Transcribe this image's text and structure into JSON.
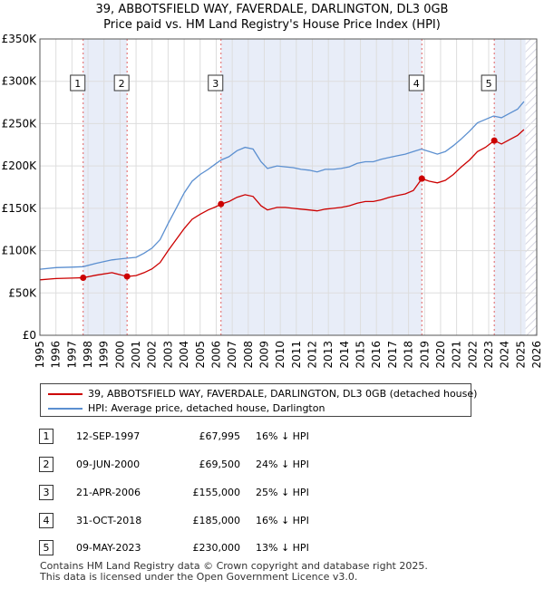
{
  "title_line1": "39, ABBOTSFIELD WAY, FAVERDALE, DARLINGTON, DL3 0GB",
  "title_line2": "Price paid vs. HM Land Registry's House Price Index (HPI)",
  "legend": {
    "property_label": "39, ABBOTSFIELD WAY, FAVERDALE, DARLINGTON, DL3 0GB (detached house)",
    "hpi_label": "HPI: Average price, detached house, Darlington"
  },
  "colors": {
    "property": "#cc0000",
    "hpi": "#5b8fd0",
    "shade": "#e8edf8",
    "grid": "#dddddd"
  },
  "transactions": [
    {
      "num": "1",
      "date": "12-SEP-1997",
      "price": "£67,995",
      "hpi": "16% ↓ HPI"
    },
    {
      "num": "2",
      "date": "09-JUN-2000",
      "price": "£69,500",
      "hpi": "24% ↓ HPI"
    },
    {
      "num": "3",
      "date": "21-APR-2006",
      "price": "£155,000",
      "hpi": "25% ↓ HPI"
    },
    {
      "num": "4",
      "date": "31-OCT-2018",
      "price": "£185,000",
      "hpi": "16% ↓ HPI"
    },
    {
      "num": "5",
      "date": "09-MAY-2023",
      "price": "£230,000",
      "hpi": "13% ↓ HPI"
    }
  ],
  "footer_line1": "Contains HM Land Registry data © Crown copyright and database right 2025.",
  "footer_line2": "This data is licensed under the Open Government Licence v3.0.",
  "chart_data": {
    "type": "line",
    "title": "39, ABBOTSFIELD WAY, FAVERDALE, DARLINGTON, DL3 0GB",
    "subtitle": "Price paid vs. HM Land Registry's House Price Index (HPI)",
    "xlim": [
      1995,
      2026
    ],
    "ylim": [
      0,
      350000
    ],
    "x_ticks": [
      1995,
      1996,
      1997,
      1998,
      1999,
      2000,
      2001,
      2002,
      2003,
      2004,
      2005,
      2006,
      2007,
      2008,
      2009,
      2010,
      2011,
      2012,
      2013,
      2014,
      2015,
      2016,
      2017,
      2018,
      2019,
      2020,
      2021,
      2022,
      2023,
      2024,
      2025,
      2026
    ],
    "y_ticks": [
      0,
      50000,
      100000,
      150000,
      200000,
      250000,
      300000,
      350000
    ],
    "y_tick_labels": [
      "£0",
      "£50K",
      "£100K",
      "£150K",
      "£200K",
      "£250K",
      "£300K",
      "£350K"
    ],
    "grid": true,
    "shaded_periods": [
      [
        1997.7,
        2000.44
      ],
      [
        2006.3,
        2018.83
      ],
      [
        2023.35,
        2025.3
      ]
    ],
    "hatched_after": 2025.3,
    "series": [
      {
        "name": "HPI: Average price, detached house, Darlington",
        "x": [
          1995.0,
          1996.0,
          1997.0,
          1997.7,
          1998.5,
          1999.5,
          2000.4,
          2001.0,
          2001.5,
          2002.0,
          2002.5,
          2003.0,
          2003.5,
          2004.0,
          2004.5,
          2005.0,
          2005.5,
          2006.0,
          2006.3,
          2006.8,
          2007.3,
          2007.8,
          2008.3,
          2008.8,
          2009.2,
          2009.8,
          2010.3,
          2010.8,
          2011.3,
          2011.8,
          2012.3,
          2012.8,
          2013.3,
          2013.8,
          2014.3,
          2014.8,
          2015.3,
          2015.8,
          2016.3,
          2016.8,
          2017.3,
          2017.8,
          2018.3,
          2018.8,
          2019.3,
          2019.8,
          2020.3,
          2020.8,
          2021.3,
          2021.8,
          2022.3,
          2022.8,
          2023.3,
          2023.8,
          2024.3,
          2024.8,
          2025.2
        ],
        "values": [
          78000,
          80000,
          80500,
          81000,
          85000,
          89000,
          91000,
          92000,
          97000,
          103000,
          113000,
          132000,
          150000,
          168000,
          182000,
          190000,
          196000,
          203000,
          207000,
          211000,
          218000,
          222000,
          220000,
          205000,
          197000,
          200000,
          199000,
          198000,
          196000,
          195000,
          193000,
          196000,
          196000,
          197000,
          199000,
          203000,
          205000,
          205000,
          208000,
          210000,
          212000,
          214000,
          217000,
          220000,
          217000,
          214000,
          217000,
          224000,
          232000,
          241000,
          251000,
          255000,
          259000,
          257000,
          262000,
          267000,
          276000
        ]
      },
      {
        "name": "39, ABBOTSFIELD WAY, FAVERDALE, DARLINGTON, DL3 0GB (detached house)",
        "x": [
          1995.0,
          1996.0,
          1997.0,
          1997.7,
          1998.5,
          1999.5,
          2000.44,
          2001.0,
          2001.5,
          2002.0,
          2002.5,
          2003.0,
          2003.5,
          2004.0,
          2004.5,
          2005.0,
          2005.5,
          2006.0,
          2006.3,
          2006.8,
          2007.3,
          2007.8,
          2008.3,
          2008.8,
          2009.2,
          2009.8,
          2010.3,
          2010.8,
          2011.3,
          2011.8,
          2012.3,
          2012.8,
          2013.3,
          2013.8,
          2014.3,
          2014.8,
          2015.3,
          2015.8,
          2016.3,
          2016.8,
          2017.3,
          2017.8,
          2018.3,
          2018.83,
          2019.3,
          2019.8,
          2020.3,
          2020.8,
          2021.3,
          2021.8,
          2022.3,
          2022.8,
          2023.35,
          2023.8,
          2024.3,
          2024.8,
          2025.2
        ],
        "values": [
          65500,
          67000,
          67500,
          67995,
          71000,
          74000,
          69500,
          70500,
          74000,
          78500,
          86000,
          100000,
          113000,
          126000,
          137000,
          143000,
          148000,
          152000,
          155000,
          158000,
          163000,
          166000,
          164000,
          153000,
          148000,
          151000,
          151000,
          150000,
          149000,
          148000,
          147000,
          149000,
          150000,
          151000,
          153000,
          156000,
          158000,
          158000,
          160000,
          163000,
          165000,
          167000,
          171000,
          185000,
          182000,
          180000,
          183000,
          190000,
          199000,
          207000,
          217000,
          222000,
          230000,
          226000,
          231000,
          236000,
          243000
        ]
      }
    ],
    "sale_markers": [
      {
        "label": "1",
        "x": 1997.7,
        "value": 67995
      },
      {
        "label": "2",
        "x": 2000.44,
        "value": 69500
      },
      {
        "label": "3",
        "x": 2006.3,
        "value": 155000
      },
      {
        "label": "4",
        "x": 2018.83,
        "value": 185000
      },
      {
        "label": "5",
        "x": 2023.35,
        "value": 230000
      }
    ]
  }
}
